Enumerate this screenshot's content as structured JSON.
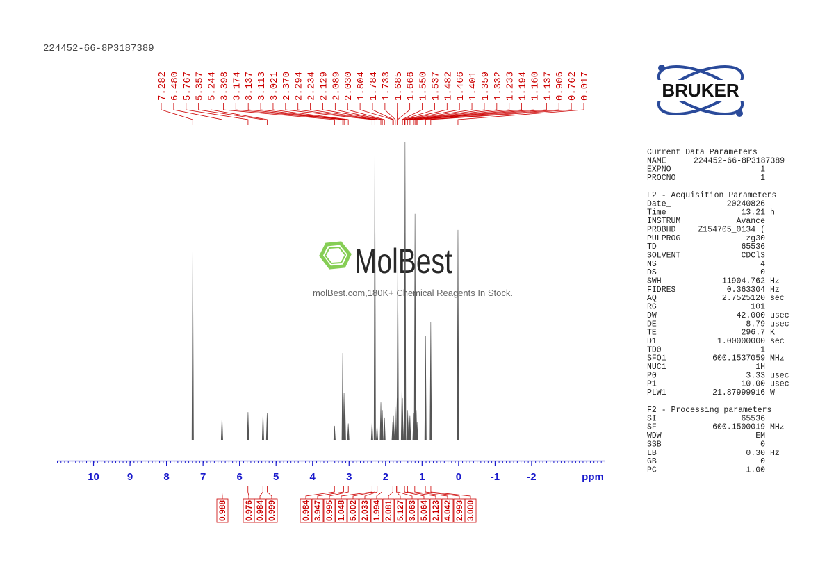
{
  "header": {
    "title": "224452-66-8P3187389"
  },
  "logo": {
    "text": "BRUKER"
  },
  "watermark": {
    "name": "MolBest",
    "tagline": "molBest.com,180K+ Chemical Reagents In Stock."
  },
  "chart_data": {
    "type": "nmr",
    "x_label": "ppm",
    "xlim": [
      11,
      -4
    ],
    "xticks": [
      10,
      9,
      8,
      7,
      6,
      5,
      4,
      3,
      2,
      1,
      0,
      -1,
      -2
    ],
    "ylim": [
      0,
      100
    ],
    "color": "#555555",
    "label_color": "#cc0000",
    "axis_color": "#1a1acc",
    "peaks": {
      "x": [
        7.282,
        6.48,
        5.767,
        5.357,
        5.244,
        3.398,
        3.174,
        3.137,
        3.113,
        3.021,
        2.37,
        2.294,
        2.234,
        2.129,
        2.089,
        2.03,
        1.804,
        1.784,
        1.733,
        1.685,
        1.666,
        1.55,
        1.537,
        1.482,
        1.466,
        1.401,
        1.359,
        1.332,
        1.233,
        1.194,
        1.16,
        1.137,
        0.906,
        0.762,
        0.017
      ],
      "x_labels": [
        "7.282",
        "6.480",
        "5.767",
        "5.357",
        "5.244",
        "3.398",
        "3.174",
        "3.137",
        "3.113",
        "3.021",
        "2.370",
        "2.294",
        "2.234",
        "2.129",
        "2.089",
        "2.030",
        "1.804",
        "1.784",
        "1.733",
        "1.685",
        "1.666",
        "1.550",
        "1.537",
        "1.482",
        "1.466",
        "1.401",
        "1.359",
        "1.332",
        "1.233",
        "1.194",
        "1.160",
        "1.137",
        "0.906",
        "0.762",
        "0.017"
      ],
      "values": [
        64.5,
        7.7,
        9.3,
        9.1,
        9.0,
        4.7,
        29.2,
        15.9,
        13,
        5.5,
        6,
        100,
        5,
        12.6,
        10,
        7.5,
        6,
        8,
        11,
        14,
        62.2,
        18.9,
        14,
        16,
        100,
        10,
        11,
        8,
        9,
        76,
        10,
        6,
        34.8,
        39.5,
        70.6
      ]
    },
    "integrals": {
      "x": [
        6.48,
        5.77,
        5.36,
        5.24,
        3.4,
        3.15,
        3.02,
        2.37,
        2.29,
        2.23,
        2.1,
        1.8,
        1.7,
        1.67,
        1.48,
        1.4,
        1.2,
        0.91,
        0.76
      ],
      "values": [
        0.988,
        0.976,
        0.984,
        0.999,
        0.984,
        3.947,
        0.995,
        1.048,
        5.002,
        2.033,
        1.994,
        2.081,
        5.127,
        3.063,
        5.064,
        2.123,
        4.042,
        2.993,
        3
      ],
      "value_labels": [
        "0.988",
        "0.976",
        "0.984",
        "0.999",
        "0.984",
        "3.947",
        "0.995",
        "1.048",
        "5.002",
        "2.033",
        "1.994",
        "2.081",
        "5.127",
        "3.063",
        "5.064",
        "2.123",
        "4.042",
        "2.993",
        "3.000"
      ]
    }
  },
  "parameters": [
    {
      "title": "Current Data Parameters",
      "rows": [
        {
          "name": "NAME",
          "value": "224452-66-8P3187389"
        },
        {
          "name": "EXPNO",
          "value": "1"
        },
        {
          "name": "PROCNO",
          "value": "1"
        }
      ]
    },
    {
      "title": "F2 - Acquisition Parameters",
      "rows": [
        {
          "name": "Date_",
          "value": "20240826"
        },
        {
          "name": "Time",
          "value": "13.21",
          "unit": "h"
        },
        {
          "name": "INSTRUM",
          "value": "Avance"
        },
        {
          "name": "PROBHD",
          "value": "Z154705_0134 ("
        },
        {
          "name": "PULPROG",
          "value": "zg30"
        },
        {
          "name": "TD",
          "value": "65536"
        },
        {
          "name": "SOLVENT",
          "value": "CDCl3"
        },
        {
          "name": "NS",
          "value": "4"
        },
        {
          "name": "DS",
          "value": "0"
        },
        {
          "name": "SWH",
          "value": "11904.762",
          "unit": "Hz"
        },
        {
          "name": "FIDRES",
          "value": "0.363304",
          "unit": "Hz"
        },
        {
          "name": "AQ",
          "value": "2.7525120",
          "unit": "sec"
        },
        {
          "name": "RG",
          "value": "101"
        },
        {
          "name": "DW",
          "value": "42.000",
          "unit": "usec"
        },
        {
          "name": "DE",
          "value": "8.79",
          "unit": "usec"
        },
        {
          "name": "TE",
          "value": "296.7",
          "unit": "K"
        },
        {
          "name": "D1",
          "value": "1.00000000",
          "unit": "sec"
        },
        {
          "name": "TD0",
          "value": "1"
        },
        {
          "name": "SFO1",
          "value": "600.1537059",
          "unit": "MHz"
        },
        {
          "name": "NUC1",
          "value": "1H"
        },
        {
          "name": "P0",
          "value": "3.33",
          "unit": "usec"
        },
        {
          "name": "P1",
          "value": "10.00",
          "unit": "usec"
        },
        {
          "name": "PLW1",
          "value": "21.87999916",
          "unit": "W"
        }
      ]
    },
    {
      "title": "F2 - Processing parameters",
      "rows": [
        {
          "name": "SI",
          "value": "65536"
        },
        {
          "name": "SF",
          "value": "600.1500019",
          "unit": "MHz"
        },
        {
          "name": "WDW",
          "value": "EM"
        },
        {
          "name": "SSB",
          "value": "0"
        },
        {
          "name": "LB",
          "value": "0.30",
          "unit": "Hz"
        },
        {
          "name": "GB",
          "value": "0"
        },
        {
          "name": "PC",
          "value": "1.00"
        }
      ]
    }
  ]
}
